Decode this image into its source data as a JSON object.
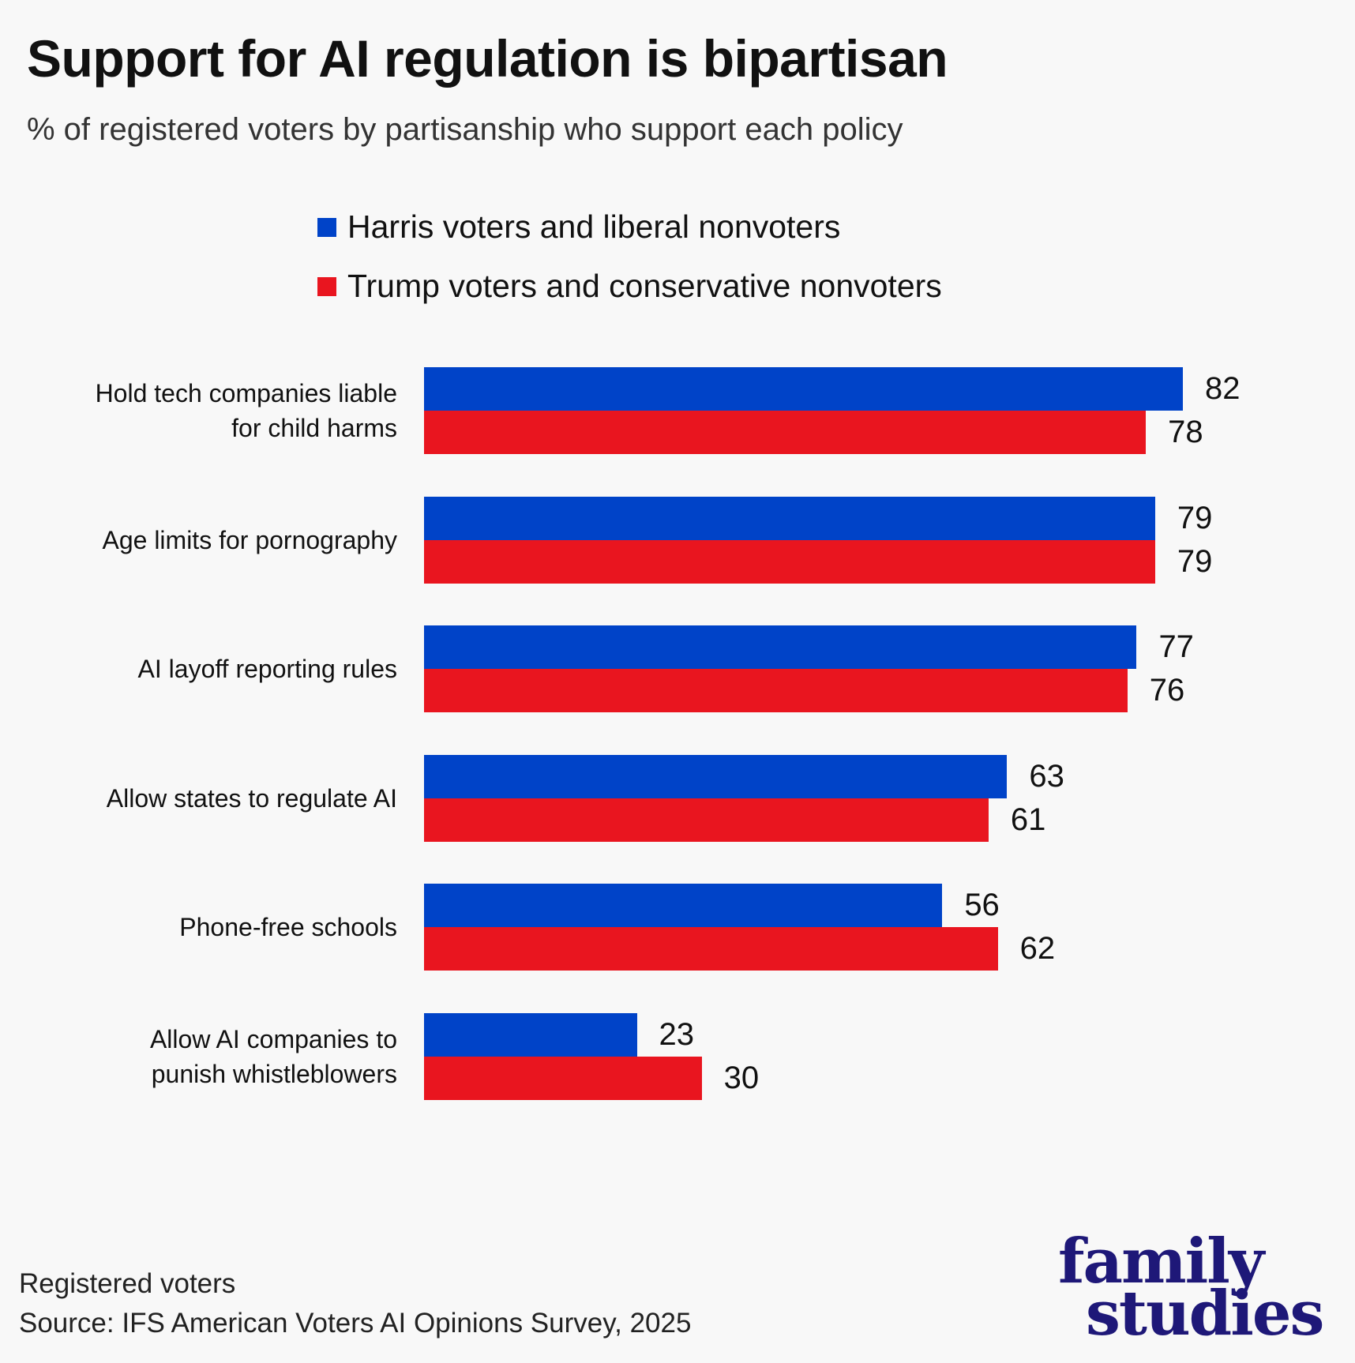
{
  "title": "Support for AI regulation is bipartisan",
  "subtitle": "% of registered voters by partisanship who support each policy",
  "chart_data": {
    "type": "bar",
    "orientation": "horizontal",
    "categories": [
      [
        "Hold tech companies liable",
        "for child harms"
      ],
      [
        "Age limits for pornography"
      ],
      [
        "AI layoff reporting rules"
      ],
      [
        "Allow states to regulate AI"
      ],
      [
        "Phone-free schools"
      ],
      [
        "Allow AI companies to",
        "punish whistleblowers"
      ]
    ],
    "series": [
      {
        "name": "Harris voters and liberal nonvoters",
        "color": "#0043c8",
        "values": [
          82,
          79,
          77,
          63,
          56,
          23
        ]
      },
      {
        "name": "Trump voters and conservative nonvoters",
        "color": "#e9151f",
        "values": [
          78,
          79,
          76,
          61,
          62,
          30
        ]
      }
    ],
    "xlim": [
      0,
      100
    ],
    "grid": false,
    "legend": "top",
    "data_labels": true
  },
  "footer": {
    "note": "Registered voters",
    "source": "Source: IFS American Voters AI Opinions Survey, 2025"
  },
  "logo": {
    "line1": "family",
    "line2": "studies",
    "color": "#1e1878"
  }
}
